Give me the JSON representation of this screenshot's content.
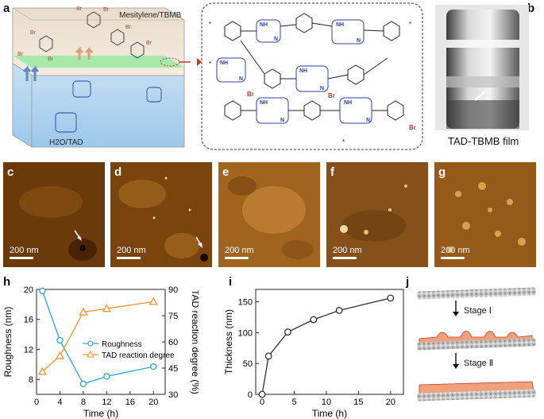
{
  "panel_a": {
    "label": "a",
    "top_phase": "Mesitylene/TBMB",
    "bottom_phase": "H2O/TAD",
    "br_label": "Br",
    "nh_label": "NH",
    "n_label": "N",
    "star": "*"
  },
  "panel_b": {
    "label": "b",
    "caption": "TAD-TBMB film"
  },
  "afm_panels": [
    {
      "label": "c",
      "scale": "200 nm",
      "bg": "#6b3a0a",
      "arrow": true
    },
    {
      "label": "d",
      "scale": "200 nm",
      "bg": "#7a440e",
      "arrow": true
    },
    {
      "label": "e",
      "scale": "200 nm",
      "bg": "#a0641e",
      "arrow": false
    },
    {
      "label": "f",
      "scale": "200 nm",
      "bg": "#85501a",
      "arrow": false
    },
    {
      "label": "g",
      "scale": "200 nm",
      "bg": "#95591a",
      "arrow": false
    }
  ],
  "panel_h": {
    "label": "h"
  },
  "panel_i": {
    "label": "i"
  },
  "panel_j": {
    "label": "j",
    "stage1": "Stage Ⅰ",
    "stage2": "Stage Ⅱ"
  },
  "chart_data": [
    {
      "type": "line",
      "xlabel": "Time (h)",
      "ylabel": "Roughness (nm)",
      "y2label": "TAD reaction degree (%)",
      "xlim": [
        0,
        22
      ],
      "ylim": [
        6,
        20
      ],
      "y2lim": [
        30,
        90
      ],
      "xticks": [
        0,
        4,
        8,
        12,
        16,
        20
      ],
      "yticks": [
        8,
        12,
        16,
        20
      ],
      "y2ticks": [
        30,
        45,
        60,
        75,
        90
      ],
      "legend_position": "center-right",
      "series": [
        {
          "name": "Roughness",
          "axis": "left",
          "color": "#2aa3e0",
          "marker": "circle",
          "x": [
            1,
            4,
            8,
            12,
            20
          ],
          "y": [
            19.8,
            13.2,
            7.4,
            8.4,
            9.7
          ]
        },
        {
          "name": "TAD reaction degree",
          "axis": "right",
          "color": "#f0922a",
          "marker": "triangle",
          "x": [
            1,
            4,
            8,
            12,
            20
          ],
          "y": [
            43,
            52,
            77,
            79,
            83
          ]
        }
      ]
    },
    {
      "type": "line",
      "xlabel": "Time (h)",
      "ylabel": "Thickness (nm)",
      "xlim": [
        -1,
        22
      ],
      "ylim": [
        0,
        170
      ],
      "xticks": [
        0,
        5,
        10,
        15,
        20
      ],
      "yticks": [
        0,
        50,
        100,
        150
      ],
      "series": [
        {
          "color": "#222222",
          "marker": "circle",
          "x": [
            0,
            1,
            4,
            8,
            12,
            20
          ],
          "y": [
            0,
            62,
            101,
            121,
            136,
            156
          ]
        }
      ]
    }
  ]
}
